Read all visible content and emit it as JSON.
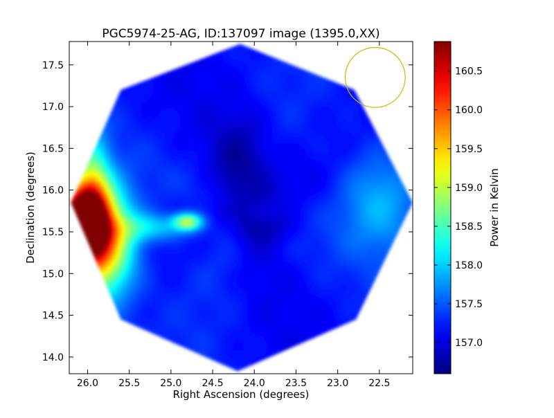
{
  "chart_data": {
    "type": "heatmap",
    "title": "PGC5974-25-AG, ID:137097 image (1395.0,XX)",
    "xlabel": "Right Ascension (degrees)",
    "ylabel": "Declination (degrees)",
    "xlim": [
      26.22,
      22.1
    ],
    "ylim": [
      13.8,
      17.78
    ],
    "x_ticks": [
      "26.0",
      "25.5",
      "25.0",
      "24.5",
      "24.0",
      "23.5",
      "23.0",
      "22.5"
    ],
    "x_tick_values": [
      26.0,
      25.5,
      25.0,
      24.5,
      24.0,
      23.5,
      23.0,
      22.5
    ],
    "y_ticks": [
      "14.0",
      "14.5",
      "15.0",
      "15.5",
      "16.0",
      "16.5",
      "17.0",
      "17.5"
    ],
    "y_tick_values": [
      14.0,
      14.5,
      15.0,
      15.5,
      16.0,
      16.5,
      17.0,
      17.5
    ],
    "colorbar": {
      "label": "Power in Kelvin",
      "min": 156.6,
      "max": 160.88,
      "ticks": [
        "157.0",
        "157.5",
        "158.0",
        "158.5",
        "159.0",
        "159.5",
        "160.0",
        "160.5"
      ],
      "tick_values": [
        157.0,
        157.5,
        158.0,
        158.5,
        159.0,
        159.5,
        160.0,
        160.5
      ],
      "colormap": "jet"
    },
    "footprint": {
      "shape": "octagon",
      "center_ra": 24.17,
      "center_dec": 15.8,
      "background_value": 157.2,
      "vertices": [
        [
          24.17,
          17.75
        ],
        [
          22.8,
          17.2
        ],
        [
          22.1,
          15.85
        ],
        [
          22.78,
          14.45
        ],
        [
          24.2,
          13.83
        ],
        [
          25.6,
          14.45
        ],
        [
          26.2,
          15.85
        ],
        [
          25.6,
          17.2
        ]
      ]
    },
    "features": [
      {
        "ra": 26.1,
        "dec": 15.62,
        "value": 160.85,
        "sigma_ra": 0.22,
        "sigma_dec": 0.28
      },
      {
        "ra": 25.85,
        "dec": 15.35,
        "value": 159.8,
        "sigma_ra": 0.28,
        "sigma_dec": 0.45
      },
      {
        "ra": 25.95,
        "dec": 15.95,
        "value": 158.6,
        "sigma_ra": 0.15,
        "sigma_dec": 0.5
      },
      {
        "ra": 24.8,
        "dec": 15.62,
        "value": 158.8,
        "sigma_ra": 0.12,
        "sigma_dec": 0.07
      },
      {
        "ra": 25.2,
        "dec": 15.55,
        "value": 158.0,
        "sigma_ra": 0.35,
        "sigma_dec": 0.12
      },
      {
        "ra": 22.5,
        "dec": 15.9,
        "value": 157.9,
        "sigma_ra": 0.35,
        "sigma_dec": 0.45
      },
      {
        "ra": 24.1,
        "dec": 16.3,
        "value": 156.7,
        "sigma_ra": 0.25,
        "sigma_dec": 0.45
      },
      {
        "ra": 23.8,
        "dec": 15.55,
        "value": 156.85,
        "sigma_ra": 0.25,
        "sigma_dec": 0.15
      }
    ],
    "beam_circle": {
      "ra": 22.55,
      "dec": 17.35,
      "radius_deg": 0.36,
      "color": "#bfbf00"
    },
    "grid": false,
    "legend": "none"
  },
  "colors": {
    "frame": "#000000",
    "background": "#ffffff",
    "beam": "#bfbf00"
  }
}
